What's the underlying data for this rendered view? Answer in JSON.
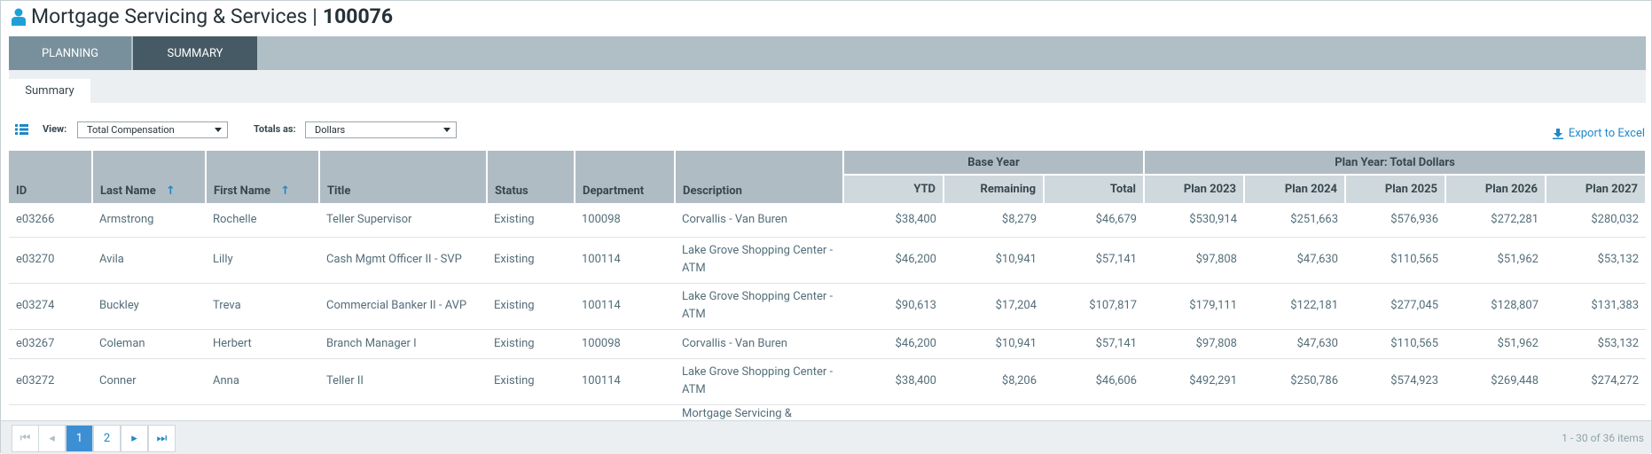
{
  "header": {
    "title": "Mortgage Servicing & Services |",
    "id": "100076"
  },
  "tabs": [
    "PLANNING",
    "SUMMARY"
  ],
  "subtab": "Summary",
  "toolbar": {
    "view_label": "View:",
    "view_value": "Total Compensation",
    "totals_label": "Totals as:",
    "totals_value": "Dollars",
    "export": "Export to Excel"
  },
  "table": {
    "groups": [
      "Base Year",
      "Plan Year: Total Dollars"
    ],
    "columns": [
      "ID",
      "Last Name",
      "First Name",
      "Title",
      "Status",
      "Department",
      "Description",
      "YTD",
      "Remaining",
      "Total",
      "Plan 2023",
      "Plan 2024",
      "Plan 2025",
      "Plan 2026",
      "Plan 2027"
    ],
    "rows": [
      [
        "e03266",
        "Armstrong",
        "Rochelle",
        "Teller Supervisor",
        "Existing",
        "100098",
        "Corvallis - Van Buren",
        "$38,400",
        "$8,279",
        "$46,679",
        "$530,914",
        "$251,663",
        "$576,936",
        "$272,281",
        "$280,032"
      ],
      [
        "e03270",
        "Avila",
        "Lilly",
        "Cash Mgmt Officer II - SVP",
        "Existing",
        "100114",
        "Lake Grove Shopping Center - ATM",
        "$46,200",
        "$10,941",
        "$57,141",
        "$97,808",
        "$47,630",
        "$110,565",
        "$51,962",
        "$53,132"
      ],
      [
        "e03274",
        "Buckley",
        "Treva",
        "Commercial Banker II - AVP",
        "Existing",
        "100114",
        "Lake Grove Shopping Center - ATM",
        "$90,613",
        "$17,204",
        "$107,817",
        "$179,111",
        "$122,181",
        "$277,045",
        "$128,807",
        "$131,383"
      ],
      [
        "e03267",
        "Coleman",
        "Herbert",
        "Branch Manager I",
        "Existing",
        "100098",
        "Corvallis - Van Buren",
        "$46,200",
        "$10,941",
        "$57,141",
        "$97,808",
        "$47,630",
        "$110,565",
        "$51,962",
        "$53,132"
      ],
      [
        "e03272",
        "Conner",
        "Anna",
        "Teller II",
        "Existing",
        "100114",
        "Lake Grove Shopping Center - ATM",
        "$38,400",
        "$8,206",
        "$46,606",
        "$492,291",
        "$250,786",
        "$574,923",
        "$269,448",
        "$274,272"
      ]
    ],
    "partial_row_description": "Mortgage Servicing &"
  },
  "pagination": {
    "pages": [
      "1",
      "2"
    ],
    "summary": "1 - 30 of 36 items"
  }
}
